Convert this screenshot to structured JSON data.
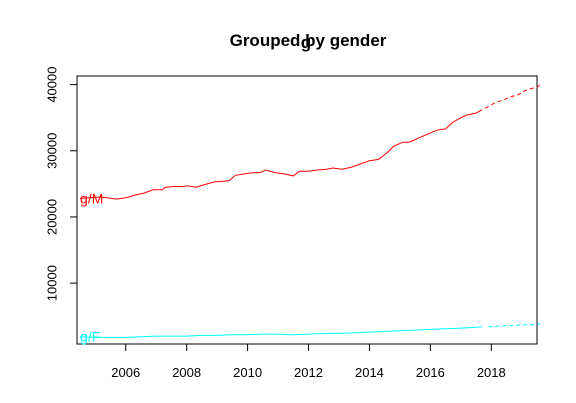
{
  "chart_data": {
    "type": "line",
    "title": "Grouped by gender",
    "title_overlay": "g",
    "xlabel": "",
    "ylabel": "",
    "xlim": [
      2004.4,
      2019.5
    ],
    "ylim": [
      800,
      41300
    ],
    "x_ticks": [
      2006,
      2008,
      2010,
      2012,
      2014,
      2016,
      2018
    ],
    "y_ticks": [
      10000,
      20000,
      30000,
      40000
    ],
    "grid": false,
    "legend": "none",
    "series": [
      {
        "name": "g/M",
        "color": "#ff0000",
        "observed": [
          [
            2004.5,
            22800
          ],
          [
            2004.8,
            22900
          ],
          [
            2005.1,
            23000
          ],
          [
            2005.4,
            22900
          ],
          [
            2005.7,
            22700
          ],
          [
            2006.0,
            22900
          ],
          [
            2006.3,
            23300
          ],
          [
            2006.6,
            23600
          ],
          [
            2006.9,
            24100
          ],
          [
            2007.2,
            24100
          ],
          [
            2007.3,
            24500
          ],
          [
            2007.6,
            24600
          ],
          [
            2007.9,
            24600
          ],
          [
            2008.0,
            24700
          ],
          [
            2008.3,
            24500
          ],
          [
            2008.6,
            24900
          ],
          [
            2008.9,
            25300
          ],
          [
            2009.2,
            25400
          ],
          [
            2009.4,
            25500
          ],
          [
            2009.6,
            26300
          ],
          [
            2009.9,
            26500
          ],
          [
            2010.2,
            26700
          ],
          [
            2010.4,
            26700
          ],
          [
            2010.6,
            27100
          ],
          [
            2010.9,
            26700
          ],
          [
            2011.2,
            26500
          ],
          [
            2011.5,
            26200
          ],
          [
            2011.7,
            26900
          ],
          [
            2012.0,
            26900
          ],
          [
            2012.3,
            27100
          ],
          [
            2012.6,
            27200
          ],
          [
            2012.8,
            27400
          ],
          [
            2013.1,
            27200
          ],
          [
            2013.4,
            27500
          ],
          [
            2013.7,
            28000
          ],
          [
            2014.0,
            28500
          ],
          [
            2014.3,
            28700
          ],
          [
            2014.6,
            29800
          ],
          [
            2014.8,
            30700
          ],
          [
            2015.1,
            31300
          ],
          [
            2015.3,
            31300
          ],
          [
            2015.6,
            31900
          ],
          [
            2015.9,
            32500
          ],
          [
            2016.2,
            33100
          ],
          [
            2016.5,
            33300
          ],
          [
            2016.7,
            34200
          ],
          [
            2017.0,
            35000
          ],
          [
            2017.2,
            35400
          ],
          [
            2017.5,
            35700
          ],
          [
            2017.7,
            36200
          ]
        ],
        "forecast": [
          [
            2017.8,
            36400
          ],
          [
            2018.1,
            37200
          ],
          [
            2018.4,
            37700
          ],
          [
            2018.6,
            38100
          ],
          [
            2018.9,
            38500
          ],
          [
            2019.0,
            38900
          ],
          [
            2019.3,
            39400
          ],
          [
            2019.5,
            39600
          ],
          [
            2019.6,
            40000
          ]
        ]
      },
      {
        "name": "g/F",
        "color": "#00ffff",
        "observed": [
          [
            2004.5,
            1900
          ],
          [
            2005.0,
            1800
          ],
          [
            2005.5,
            1800
          ],
          [
            2006.0,
            1800
          ],
          [
            2006.5,
            1900
          ],
          [
            2007.0,
            2000
          ],
          [
            2007.5,
            2000
          ],
          [
            2008.0,
            2000
          ],
          [
            2008.5,
            2100
          ],
          [
            2009.0,
            2100
          ],
          [
            2009.5,
            2200
          ],
          [
            2010.0,
            2200
          ],
          [
            2010.5,
            2300
          ],
          [
            2011.0,
            2300
          ],
          [
            2011.5,
            2200
          ],
          [
            2012.0,
            2300
          ],
          [
            2012.5,
            2400
          ],
          [
            2013.0,
            2400
          ],
          [
            2013.5,
            2500
          ],
          [
            2014.0,
            2600
          ],
          [
            2014.5,
            2700
          ],
          [
            2015.0,
            2800
          ],
          [
            2015.5,
            2900
          ],
          [
            2016.0,
            3000
          ],
          [
            2016.5,
            3100
          ],
          [
            2017.0,
            3200
          ],
          [
            2017.4,
            3300
          ],
          [
            2017.7,
            3400
          ]
        ],
        "forecast": [
          [
            2017.9,
            3400
          ],
          [
            2018.3,
            3500
          ],
          [
            2018.7,
            3600
          ],
          [
            2019.1,
            3700
          ],
          [
            2019.4,
            3700
          ],
          [
            2019.6,
            3800
          ]
        ]
      }
    ]
  }
}
